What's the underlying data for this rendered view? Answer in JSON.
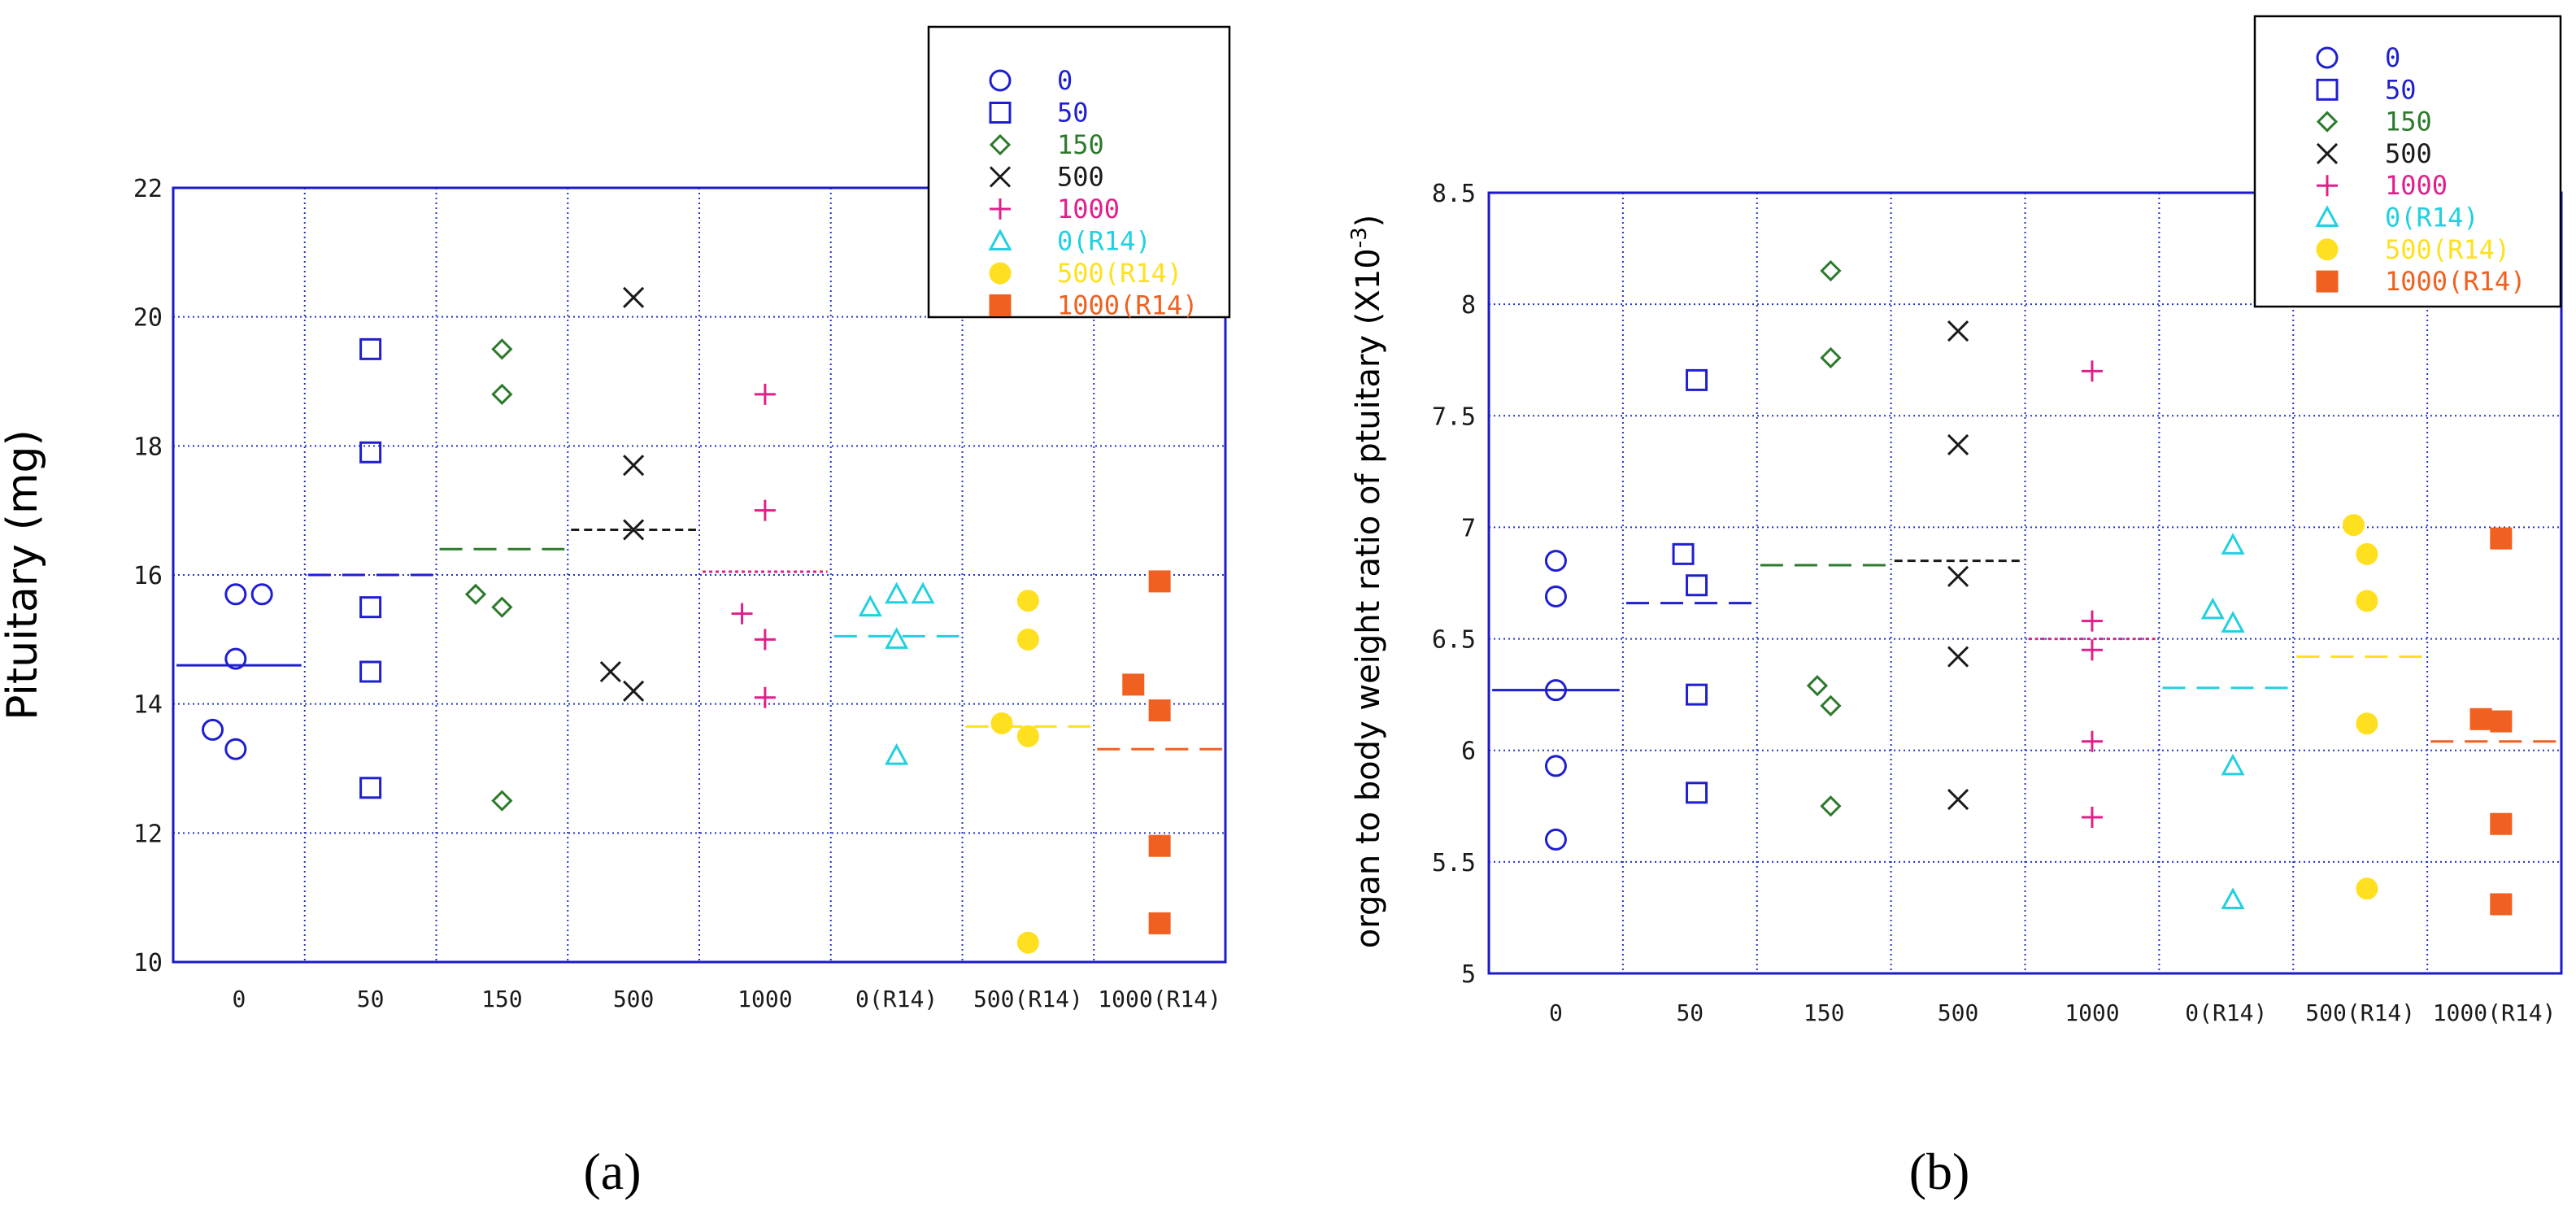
{
  "chart_data": [
    {
      "type": "scatter",
      "panel_label": "(a)",
      "title": "",
      "xlabel": "",
      "ylabel": "Pituitary (mg)",
      "ylim": [
        10,
        22
      ],
      "yticks": [
        "10",
        "12",
        "14",
        "16",
        "18",
        "20",
        "22"
      ],
      "grid": true,
      "legend_position": "top-right",
      "categories": [
        "0",
        "50",
        "150",
        "500",
        "1000",
        "0(R14)",
        "500(R14)",
        "1000(R14)"
      ],
      "series": [
        {
          "name": "0",
          "marker": "circle",
          "color": "#1f1fd0",
          "points": [
            [
              -0.4,
              13.6
            ],
            [
              -0.05,
              13.3
            ],
            [
              -0.05,
              14.7
            ],
            [
              -0.05,
              15.7
            ],
            [
              0.35,
              15.7
            ]
          ],
          "mean": 14.6
        },
        {
          "name": "50",
          "marker": "square",
          "color": "#1f1fd0",
          "points": [
            [
              0,
              12.7
            ],
            [
              0,
              14.5
            ],
            [
              0,
              15.5
            ],
            [
              0,
              17.9
            ],
            [
              0,
              19.5
            ]
          ],
          "mean": 16.0
        },
        {
          "name": "150",
          "marker": "diamond",
          "color": "#2d7a2d",
          "points": [
            [
              -0.4,
              15.7
            ],
            [
              0,
              12.5
            ],
            [
              0,
              15.5
            ],
            [
              0,
              18.8
            ],
            [
              0,
              19.5
            ]
          ],
          "mean": 16.4
        },
        {
          "name": "500",
          "marker": "x",
          "color": "#1a1a1a",
          "points": [
            [
              -0.35,
              14.5
            ],
            [
              0,
              14.2
            ],
            [
              0,
              16.7
            ],
            [
              0,
              17.7
            ],
            [
              0,
              20.3
            ]
          ],
          "mean": 16.7
        },
        {
          "name": "1000",
          "marker": "plus",
          "color": "#e0208a",
          "points": [
            [
              -0.35,
              15.4
            ],
            [
              0,
              14.1
            ],
            [
              0,
              15.0
            ],
            [
              0,
              17.0
            ],
            [
              0,
              18.8
            ]
          ],
          "mean": 16.05
        },
        {
          "name": "0(R14)",
          "marker": "triangle",
          "color": "#22d0e0",
          "points": [
            [
              -0.4,
              15.5
            ],
            [
              0,
              13.2
            ],
            [
              0,
              15.0
            ],
            [
              0,
              15.7
            ],
            [
              0.4,
              15.7
            ]
          ],
          "mean": 15.05
        },
        {
          "name": "500(R14)",
          "marker": "filled-circle",
          "color": "#ffe020",
          "points": [
            [
              -0.4,
              13.7
            ],
            [
              0,
              10.3
            ],
            [
              0,
              13.5
            ],
            [
              0,
              15.0
            ],
            [
              0,
              15.6
            ]
          ],
          "mean": 13.65
        },
        {
          "name": "1000(R14)",
          "marker": "filled-square",
          "color": "#f06020",
          "points": [
            [
              -0.4,
              14.3
            ],
            [
              0,
              10.6
            ],
            [
              0,
              11.8
            ],
            [
              0,
              13.9
            ],
            [
              0,
              15.9
            ]
          ],
          "mean": 13.3
        }
      ]
    },
    {
      "type": "scatter",
      "panel_label": "(b)",
      "title": "",
      "xlabel": "",
      "ylabel": "organ to body weight ratio of ptuitary (X10",
      "ylabel_sup": "-3",
      "ylabel_close": ")",
      "ylim": [
        5,
        8.5
      ],
      "yticks": [
        "5",
        "5.5",
        "6",
        "6.5",
        "7",
        "7.5",
        "8",
        "8.5"
      ],
      "grid": true,
      "legend_position": "top-right",
      "categories": [
        "0",
        "50",
        "150",
        "500",
        "1000",
        "0(R14)",
        "500(R14)",
        "1000(R14)"
      ],
      "series": [
        {
          "name": "0",
          "marker": "circle",
          "color": "#1f1fd0",
          "points": [
            [
              0,
              5.6
            ],
            [
              0,
              5.93
            ],
            [
              0,
              6.27
            ],
            [
              0,
              6.69
            ],
            [
              0,
              6.85
            ]
          ],
          "mean": 6.27
        },
        {
          "name": "50",
          "marker": "square",
          "color": "#1f1fd0",
          "points": [
            [
              -0.1,
              6.88
            ],
            [
              0.1,
              5.81
            ],
            [
              0.1,
              6.25
            ],
            [
              0.1,
              6.74
            ],
            [
              0.1,
              7.66
            ]
          ],
          "mean": 6.66
        },
        {
          "name": "150",
          "marker": "diamond",
          "color": "#2d7a2d",
          "points": [
            [
              -0.1,
              6.29
            ],
            [
              0.1,
              5.75
            ],
            [
              0.1,
              6.2
            ],
            [
              0.1,
              7.76
            ],
            [
              0.1,
              8.15
            ]
          ],
          "mean": 6.83
        },
        {
          "name": "500",
          "marker": "x",
          "color": "#1a1a1a",
          "points": [
            [
              0,
              5.78
            ],
            [
              0,
              6.42
            ],
            [
              0,
              6.78
            ],
            [
              0,
              7.37
            ],
            [
              0,
              7.88
            ]
          ],
          "mean": 6.85
        },
        {
          "name": "1000",
          "marker": "plus",
          "color": "#e0208a",
          "points": [
            [
              0,
              5.7
            ],
            [
              0,
              6.04
            ],
            [
              0,
              6.45
            ],
            [
              0,
              6.58
            ],
            [
              0,
              7.7
            ]
          ],
          "mean": 6.5
        },
        {
          "name": "0(R14)",
          "marker": "triangle",
          "color": "#22d0e0",
          "points": [
            [
              -0.2,
              6.63
            ],
            [
              0.1,
              5.33
            ],
            [
              0.1,
              5.93
            ],
            [
              0.1,
              6.57
            ],
            [
              0.1,
              6.92
            ]
          ],
          "mean": 6.28
        },
        {
          "name": "500(R14)",
          "marker": "filled-circle",
          "color": "#ffe020",
          "points": [
            [
              -0.1,
              7.01
            ],
            [
              0.1,
              5.38
            ],
            [
              0.1,
              6.12
            ],
            [
              0.1,
              6.67
            ],
            [
              0.1,
              6.88
            ]
          ],
          "mean": 6.42
        },
        {
          "name": "1000(R14)",
          "marker": "filled-square",
          "color": "#f06020",
          "points": [
            [
              -0.2,
              6.14
            ],
            [
              0.1,
              5.31
            ],
            [
              0.1,
              5.67
            ],
            [
              0.1,
              6.13
            ],
            [
              0.1,
              6.95
            ]
          ],
          "mean": 6.04
        }
      ]
    }
  ]
}
